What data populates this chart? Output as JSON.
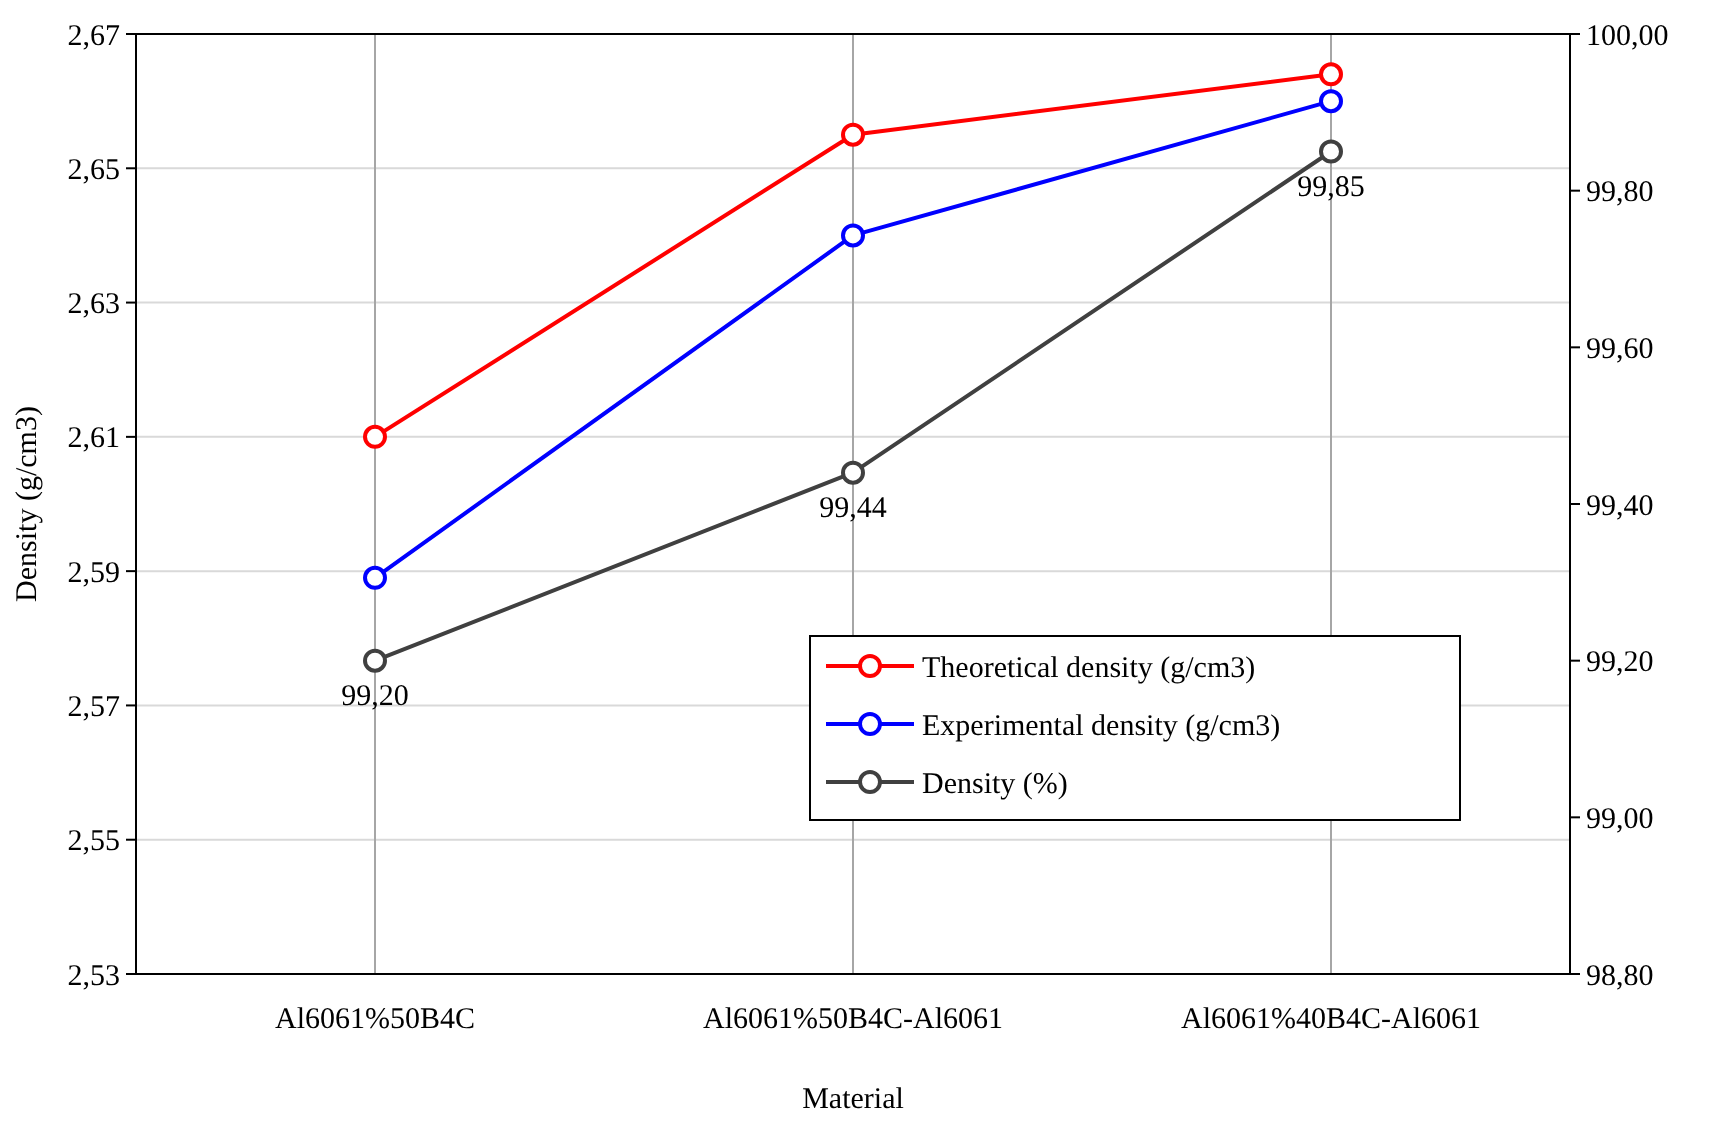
{
  "chart_data": {
    "type": "line",
    "xlabel": "Material",
    "ylabel": "Density (g/cm3)",
    "categories": [
      "Al6061%50B4C",
      "Al6061%50B4C-Al6061",
      "Al6061%40B4C-Al6061"
    ],
    "series": [
      {
        "name": "Theoretical density (g/cm3)",
        "color": "#ff0000",
        "values": [
          2.61,
          2.655,
          2.664
        ]
      },
      {
        "name": "Experimental density (g/cm3)",
        "color": "#0000ff",
        "values": [
          2.589,
          2.64,
          2.66
        ]
      },
      {
        "name": "Density (%)",
        "color": "#404040",
        "axis": "y2",
        "values": [
          99.2,
          99.44,
          99.85
        ],
        "value_labels": [
          "99,20",
          "99,44",
          "99,85"
        ]
      }
    ],
    "ylim": [
      2.53,
      2.67
    ],
    "yticks": [
      {
        "value": 2.53,
        "label": "2,53"
      },
      {
        "value": 2.55,
        "label": "2,55"
      },
      {
        "value": 2.57,
        "label": "2,57"
      },
      {
        "value": 2.59,
        "label": "2,59"
      },
      {
        "value": 2.61,
        "label": "2,61"
      },
      {
        "value": 2.63,
        "label": "2,63"
      },
      {
        "value": 2.65,
        "label": "2,65"
      },
      {
        "value": 2.67,
        "label": "2,67"
      }
    ],
    "y2lim": [
      98.8,
      100
    ],
    "y2ticks": [
      {
        "value": 98.8,
        "label": "98,80"
      },
      {
        "value": 99,
        "label": "99,00"
      },
      {
        "value": 99.2,
        "label": "99,20"
      },
      {
        "value": 99.4,
        "label": "99,40"
      },
      {
        "value": 99.6,
        "label": "99,60"
      },
      {
        "value": 99.8,
        "label": "99,80"
      },
      {
        "value": 100,
        "label": "100,00"
      }
    ],
    "grid": true,
    "legend": "bottom right",
    "marker": "circle",
    "line_style": "solid"
  }
}
